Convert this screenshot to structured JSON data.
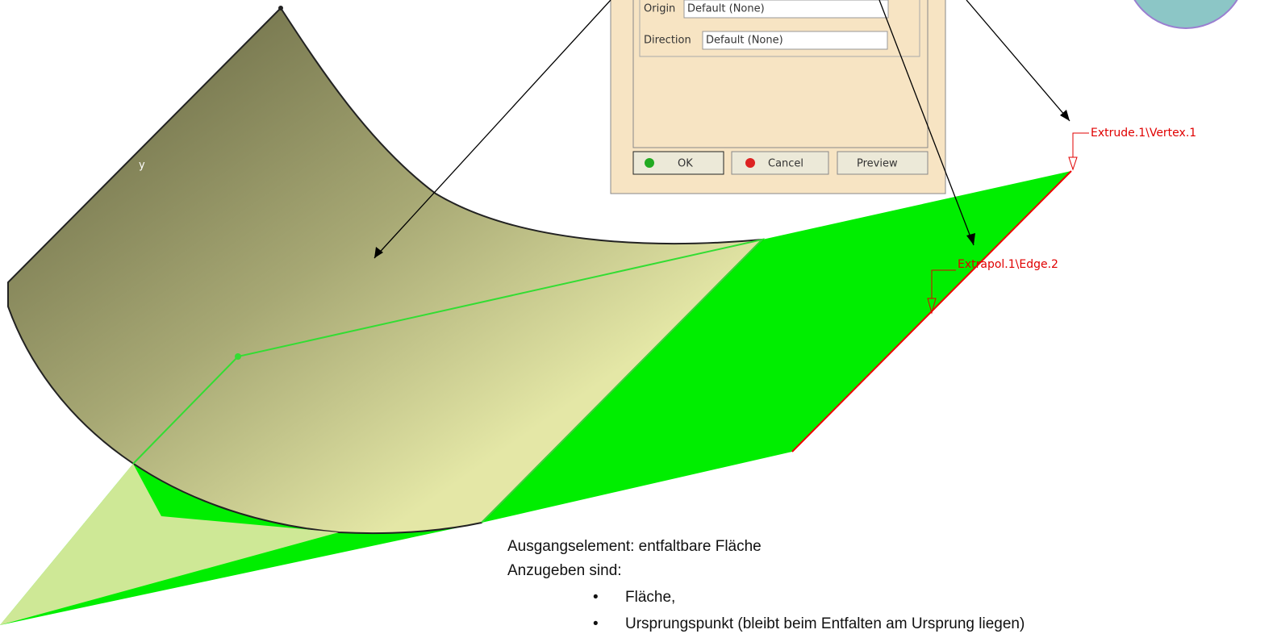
{
  "dialog": {
    "origin_label": "Origin",
    "origin_value": "Default (None)",
    "direction_label": "Direction",
    "direction_value": "Default (None)",
    "ok": "OK",
    "cancel": "Cancel",
    "preview": "Preview"
  },
  "viewport": {
    "axis_label": "y",
    "vertex_label": "Extrude.1\\Vertex.1",
    "edge_label": "Extrapol.1\\Edge.2"
  },
  "notes": {
    "line1": "Ausgangselement: entfaltbare Fläche",
    "line2": "Anzugeben sind:",
    "bullets": [
      "Fläche,",
      "Ursprungspunkt (bleibt beim Entfalten am Ursprung liegen)"
    ]
  }
}
